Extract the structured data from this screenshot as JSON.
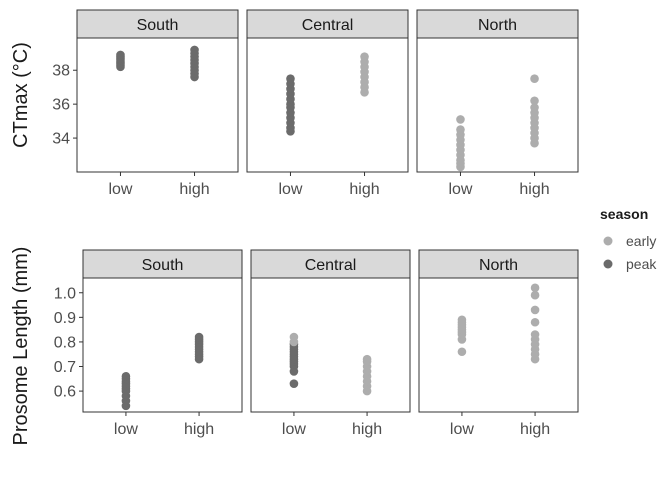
{
  "colors": {
    "early": "#adadad",
    "peak": "#6b6b6b"
  },
  "legend": {
    "title": "season",
    "items": [
      {
        "key": "early",
        "label": "early"
      },
      {
        "key": "peak",
        "label": "peak"
      }
    ]
  },
  "chart_data": [
    {
      "type": "scatter",
      "ylabel": "CTmax (°C)",
      "ylim": [
        32.0,
        39.9
      ],
      "yticks": [
        34,
        36,
        38
      ],
      "categories": [
        "low",
        "high"
      ],
      "facets": [
        {
          "label": "South",
          "groups": [
            {
              "x": "low",
              "season": "peak",
              "values": [
                38.2,
                38.3,
                38.4,
                38.5,
                38.6,
                38.7,
                38.8,
                38.9
              ]
            },
            {
              "x": "high",
              "season": "peak",
              "values": [
                37.6,
                37.8,
                38.0,
                38.2,
                38.4,
                38.6,
                38.8,
                39.0,
                39.2
              ]
            }
          ]
        },
        {
          "label": "Central",
          "groups": [
            {
              "x": "low",
              "season": "peak",
              "values": [
                34.4,
                34.6,
                34.9,
                35.2,
                35.5,
                35.8,
                36.0,
                36.3,
                36.6,
                36.9,
                37.2,
                37.5
              ]
            },
            {
              "x": "high",
              "season": "early",
              "values": [
                36.7,
                37.0,
                37.3,
                37.6,
                37.9,
                38.2,
                38.5,
                38.8
              ]
            }
          ]
        },
        {
          "label": "North",
          "groups": [
            {
              "x": "low",
              "season": "early",
              "values": [
                32.3,
                32.5,
                32.7,
                33.0,
                33.3,
                33.6,
                33.9,
                34.2,
                34.5,
                35.1
              ]
            },
            {
              "x": "high",
              "season": "early",
              "values": [
                33.7,
                34.0,
                34.3,
                34.6,
                34.9,
                35.2,
                35.5,
                35.8,
                36.2,
                37.5
              ]
            }
          ]
        }
      ]
    },
    {
      "type": "scatter",
      "ylabel": "Prosome Length (mm)",
      "ylim": [
        0.515,
        1.06
      ],
      "yticks": [
        0.6,
        0.7,
        0.8,
        0.9,
        1.0
      ],
      "categories": [
        "low",
        "high"
      ],
      "facets": [
        {
          "label": "South",
          "groups": [
            {
              "x": "low",
              "season": "peak",
              "values": [
                0.54,
                0.56,
                0.58,
                0.6,
                0.61,
                0.62,
                0.63,
                0.64,
                0.65,
                0.66
              ]
            },
            {
              "x": "high",
              "season": "peak",
              "values": [
                0.73,
                0.74,
                0.75,
                0.76,
                0.77,
                0.78,
                0.79,
                0.8,
                0.81,
                0.82
              ]
            }
          ]
        },
        {
          "label": "Central",
          "groups": [
            {
              "x": "low",
              "season": "peak",
              "values": [
                0.63,
                0.68,
                0.7,
                0.71,
                0.72,
                0.73,
                0.74,
                0.75,
                0.76,
                0.77,
                0.78,
                0.79
              ]
            },
            {
              "x": "low",
              "season": "early",
              "values": [
                0.8,
                0.82
              ]
            },
            {
              "x": "high",
              "season": "early",
              "values": [
                0.6,
                0.62,
                0.64,
                0.66,
                0.68,
                0.7,
                0.72,
                0.73
              ]
            }
          ]
        },
        {
          "label": "North",
          "groups": [
            {
              "x": "low",
              "season": "early",
              "values": [
                0.76,
                0.81,
                0.83,
                0.84,
                0.85,
                0.86,
                0.87,
                0.88,
                0.89
              ]
            },
            {
              "x": "high",
              "season": "early",
              "values": [
                0.73,
                0.75,
                0.77,
                0.79,
                0.81,
                0.83,
                0.88,
                0.93,
                0.99,
                1.02
              ]
            }
          ]
        }
      ]
    }
  ]
}
